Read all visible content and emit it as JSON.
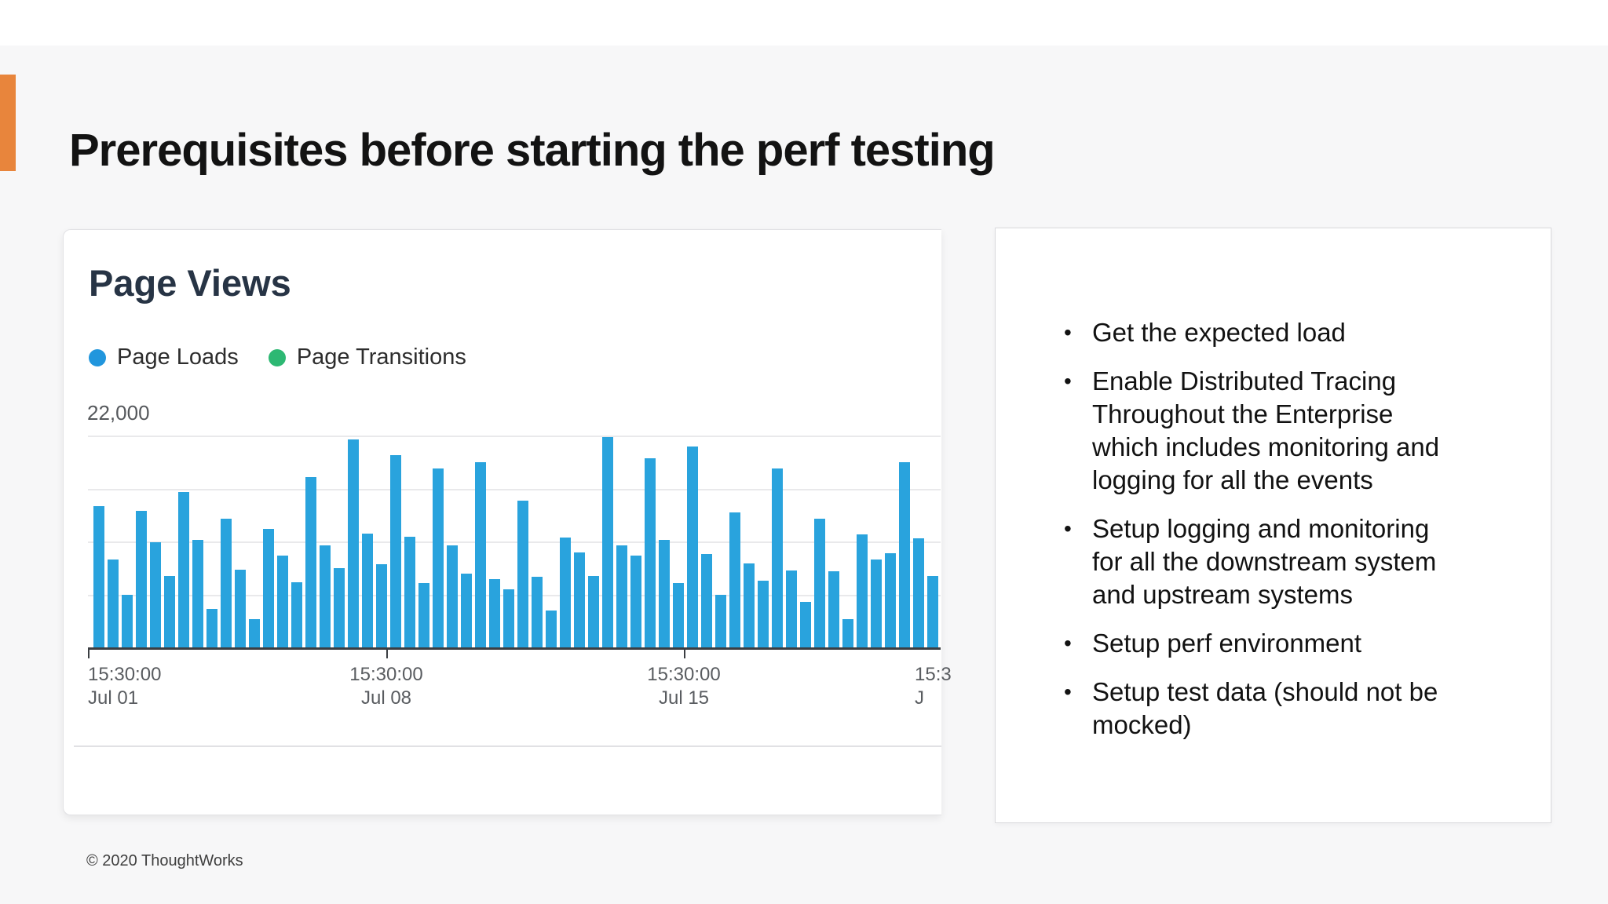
{
  "slide": {
    "title": "Prerequisites before starting the perf testing",
    "footer": "© 2020 ThoughtWorks",
    "accent_color": "#E8853C",
    "background_color": "#F7F7F8"
  },
  "chart_card": {
    "title": "Page Views",
    "legend": [
      {
        "label": "Page Loads",
        "color": "#2196DD"
      },
      {
        "label": "Page Transitions",
        "color": "#2DB873"
      }
    ],
    "y_top_label": "22,000"
  },
  "chart_data": {
    "type": "bar",
    "title": "Page Views",
    "ylim": [
      0,
      22000
    ],
    "grid": true,
    "gridline_values": [
      5500,
      11000,
      16500,
      22000
    ],
    "legend_position": "top-left",
    "bar_color": "#29A3DD",
    "series": [
      {
        "name": "Page Loads",
        "values": [
          14700,
          9100,
          5500,
          14200,
          10900,
          7400,
          16100,
          11200,
          4000,
          13400,
          8100,
          2900,
          12300,
          9500,
          6800,
          17700,
          10600,
          8200,
          21600,
          11800,
          8600,
          20000,
          11500,
          6700,
          18600,
          10600,
          7700,
          19200,
          7100,
          6000,
          15200,
          7300,
          3800,
          11400,
          9900,
          7400,
          21800,
          10600,
          9500,
          19600,
          11200,
          6700,
          20900,
          9700,
          5500,
          14000,
          8700,
          6900,
          18600,
          8000,
          4700,
          13400,
          7900,
          2900,
          11700,
          9100,
          9800,
          19200,
          11300,
          7400
        ]
      },
      {
        "name": "Page Transitions",
        "values": []
      }
    ],
    "x_ticks": [
      {
        "time": "15:30:00",
        "date": "Jul 01",
        "x": 0,
        "align": "left",
        "tick": true
      },
      {
        "time": "15:30:00",
        "date": "Jul 08",
        "x": 380,
        "align": "center",
        "tick": true
      },
      {
        "time": "15:30:00",
        "date": "Jul 15",
        "x": 759,
        "align": "center",
        "tick": true
      },
      {
        "time": "15:3",
        "date": "J",
        "x": 1053,
        "align": "left",
        "tick": false
      }
    ]
  },
  "bullets": {
    "marker": "•",
    "items": [
      "Get the expected load",
      "Enable Distributed Tracing\nThroughout the Enterprise\nwhich includes monitoring and\nlogging for all the events",
      "Setup logging and monitoring\nfor all the downstream system\nand upstream systems",
      "Setup perf environment",
      "Setup test data (should not be\nmocked)"
    ]
  }
}
